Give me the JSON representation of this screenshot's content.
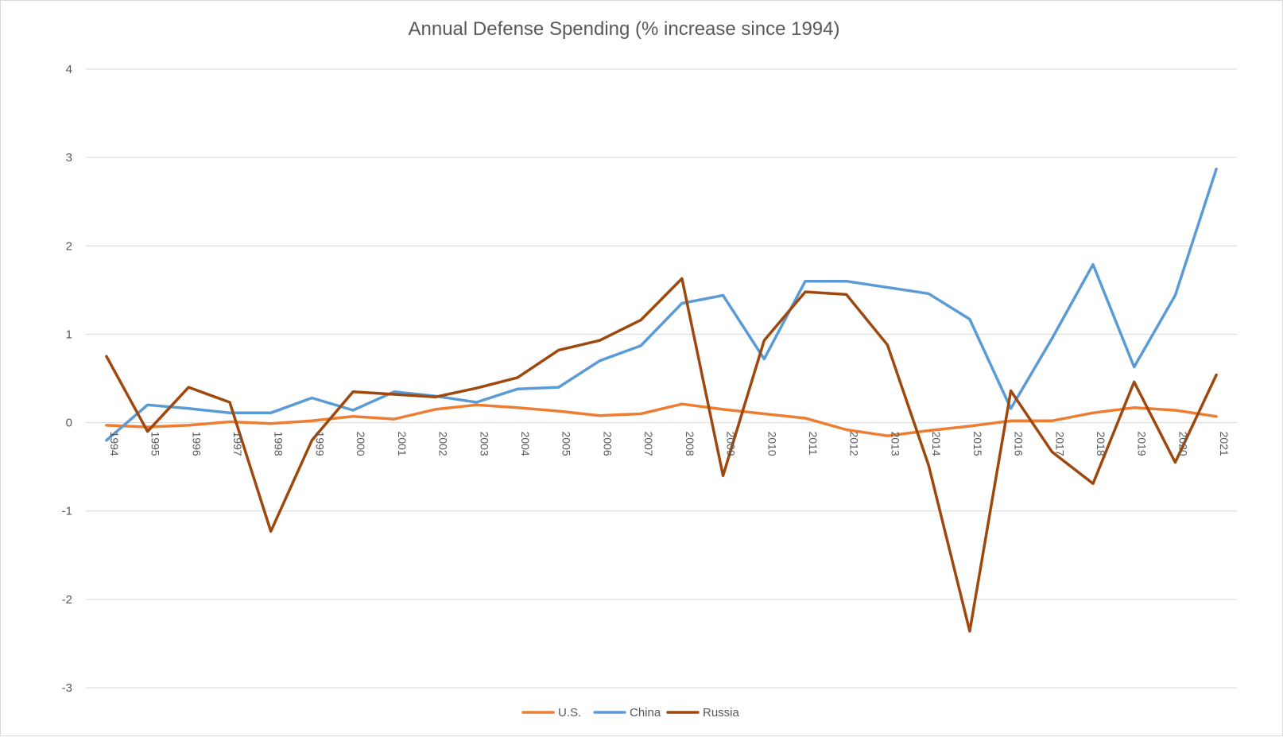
{
  "chart_data": {
    "type": "line",
    "title": "Annual Defense Spending (% increase since 1994)",
    "xlabel": "",
    "ylabel": "",
    "ylim": [
      -3,
      4
    ],
    "yticks": [
      "4",
      "3",
      "2",
      "1",
      "0",
      "-1",
      "-2",
      "-3"
    ],
    "ytick_values": [
      4,
      3,
      2,
      1,
      0,
      -1,
      -2,
      -3
    ],
    "grid": true,
    "legend_position": "bottom",
    "categories": [
      "1994",
      "1995",
      "1996",
      "1997",
      "1998",
      "1999",
      "2000",
      "2001",
      "2002",
      "2003",
      "2004",
      "2005",
      "2006",
      "2007",
      "2008",
      "2009",
      "2010",
      "2011",
      "2012",
      "2013",
      "2014",
      "2015",
      "2016",
      "2017",
      "2018",
      "2019",
      "2020",
      "2021"
    ],
    "series": [
      {
        "name": "U.S.",
        "color": "#ED7D31",
        "values": [
          -0.03,
          -0.05,
          -0.03,
          0.01,
          -0.01,
          0.02,
          0.07,
          0.04,
          0.15,
          0.2,
          0.17,
          0.13,
          0.08,
          0.1,
          0.21,
          0.15,
          0.1,
          0.05,
          -0.08,
          -0.15,
          -0.09,
          -0.04,
          0.02,
          0.02,
          0.11,
          0.17,
          0.14,
          0.07
        ]
      },
      {
        "name": "China",
        "color": "#5B9BD5",
        "values": [
          -0.2,
          0.2,
          0.16,
          0.11,
          0.11,
          0.28,
          0.14,
          0.35,
          0.3,
          0.23,
          0.38,
          0.4,
          0.7,
          0.87,
          1.35,
          1.44,
          0.72,
          1.6,
          1.6,
          1.53,
          1.46,
          1.17,
          0.16,
          0.95,
          1.79,
          0.63,
          1.44,
          2.87
        ]
      },
      {
        "name": "Russia",
        "color": "#9E480E",
        "values": [
          0.75,
          -0.1,
          0.4,
          0.23,
          -1.23,
          -0.2,
          0.35,
          0.32,
          0.29,
          0.39,
          0.51,
          0.82,
          0.93,
          1.16,
          1.63,
          -0.6,
          0.93,
          1.48,
          1.45,
          0.88,
          -0.48,
          -2.36,
          0.36,
          -0.33,
          -0.69,
          0.46,
          -0.45,
          0.54
        ]
      }
    ]
  }
}
